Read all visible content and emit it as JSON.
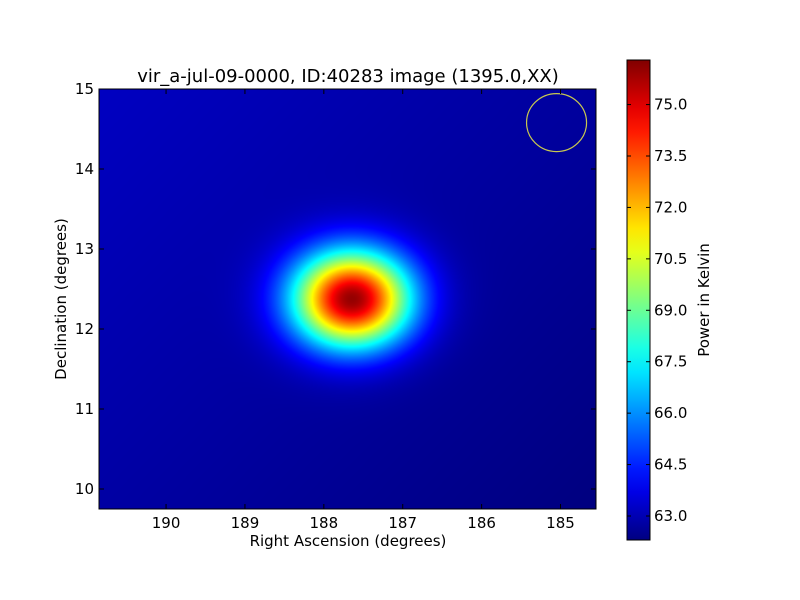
{
  "chart_data": {
    "type": "heatmap",
    "title": "vir_a-jul-09-0000, ID:40283 image (1395.0,XX)",
    "xlabel": "Right Ascension (degrees)",
    "ylabel": "Declination (degrees)",
    "xlim": [
      190.85,
      184.55
    ],
    "ylim": [
      9.75,
      15.0
    ],
    "x_ticks": [
      190,
      189,
      188,
      187,
      186,
      185
    ],
    "y_ticks": [
      10,
      11,
      12,
      13,
      14,
      15
    ],
    "x_tick_labels": [
      "190",
      "189",
      "188",
      "187",
      "186",
      "185"
    ],
    "y_tick_labels": [
      "10",
      "11",
      "12",
      "13",
      "14",
      "15"
    ],
    "colorbar": {
      "label": "Power in Kelvin",
      "range": [
        62.3,
        76.3
      ],
      "ticks": [
        63.0,
        64.5,
        66.0,
        67.5,
        69.0,
        70.5,
        72.0,
        73.5,
        75.0
      ],
      "tick_labels": [
        "63.0",
        "64.5",
        "66.0",
        "67.5",
        "69.0",
        "70.5",
        "72.0",
        "73.5",
        "75.0"
      ],
      "colormap": "jet"
    },
    "source": {
      "ra": 187.65,
      "dec": 12.38,
      "peak": 76.0,
      "sigma_ra": 0.52,
      "sigma_dec": 0.42
    },
    "background": {
      "max_value": 63.2,
      "min_value": 62.3,
      "gradient": "decreasing toward lower-right"
    },
    "beam_marker": {
      "ra": 185.05,
      "dec": 14.58,
      "color": "#c8c850"
    },
    "grid": false
  }
}
